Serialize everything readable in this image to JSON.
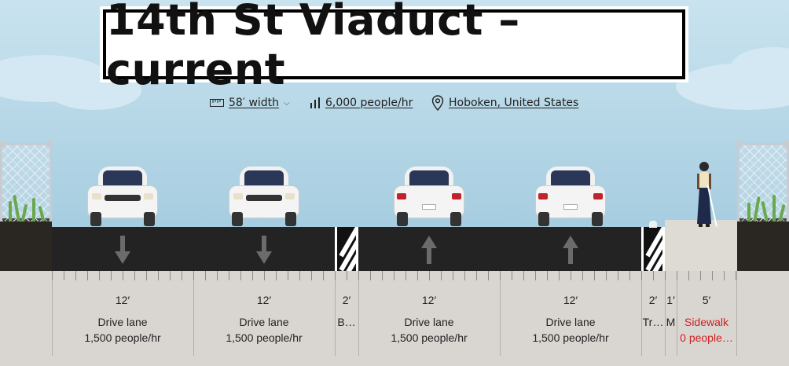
{
  "title": "14th St Viaduct – current",
  "meta": {
    "width_label": "58′ width",
    "capacity_label": "6,000 people/hr",
    "location_label": "Hoboken, United States"
  },
  "icons": [
    "ruler-icon",
    "chevron-down-icon",
    "bar-chart-icon",
    "location-pin-icon",
    "arrow-down-icon",
    "arrow-up-icon"
  ],
  "colors": {
    "sky": "#a6cde0",
    "road": "#232323",
    "ground": "#d9d6d1",
    "warning": "#d02020"
  },
  "segments": [
    {
      "width": "12′",
      "name": "Drive lane",
      "capacity": "1,500 people/hr",
      "direction": "down"
    },
    {
      "width": "12′",
      "name": "Drive lane",
      "capacity": "1,500 people/hr",
      "direction": "down"
    },
    {
      "width": "2′",
      "name": "B…",
      "capacity": ""
    },
    {
      "width": "12′",
      "name": "Drive lane",
      "capacity": "1,500 people/hr",
      "direction": "up"
    },
    {
      "width": "12′",
      "name": "Drive lane",
      "capacity": "1,500 people/hr",
      "direction": "up"
    },
    {
      "width": "2′",
      "name": "Tr…",
      "capacity": ""
    },
    {
      "width": "1′",
      "name": "M",
      "capacity": ""
    },
    {
      "width": "5′",
      "name": "Sidewalk",
      "capacity": "0 people…",
      "warning": true
    }
  ]
}
